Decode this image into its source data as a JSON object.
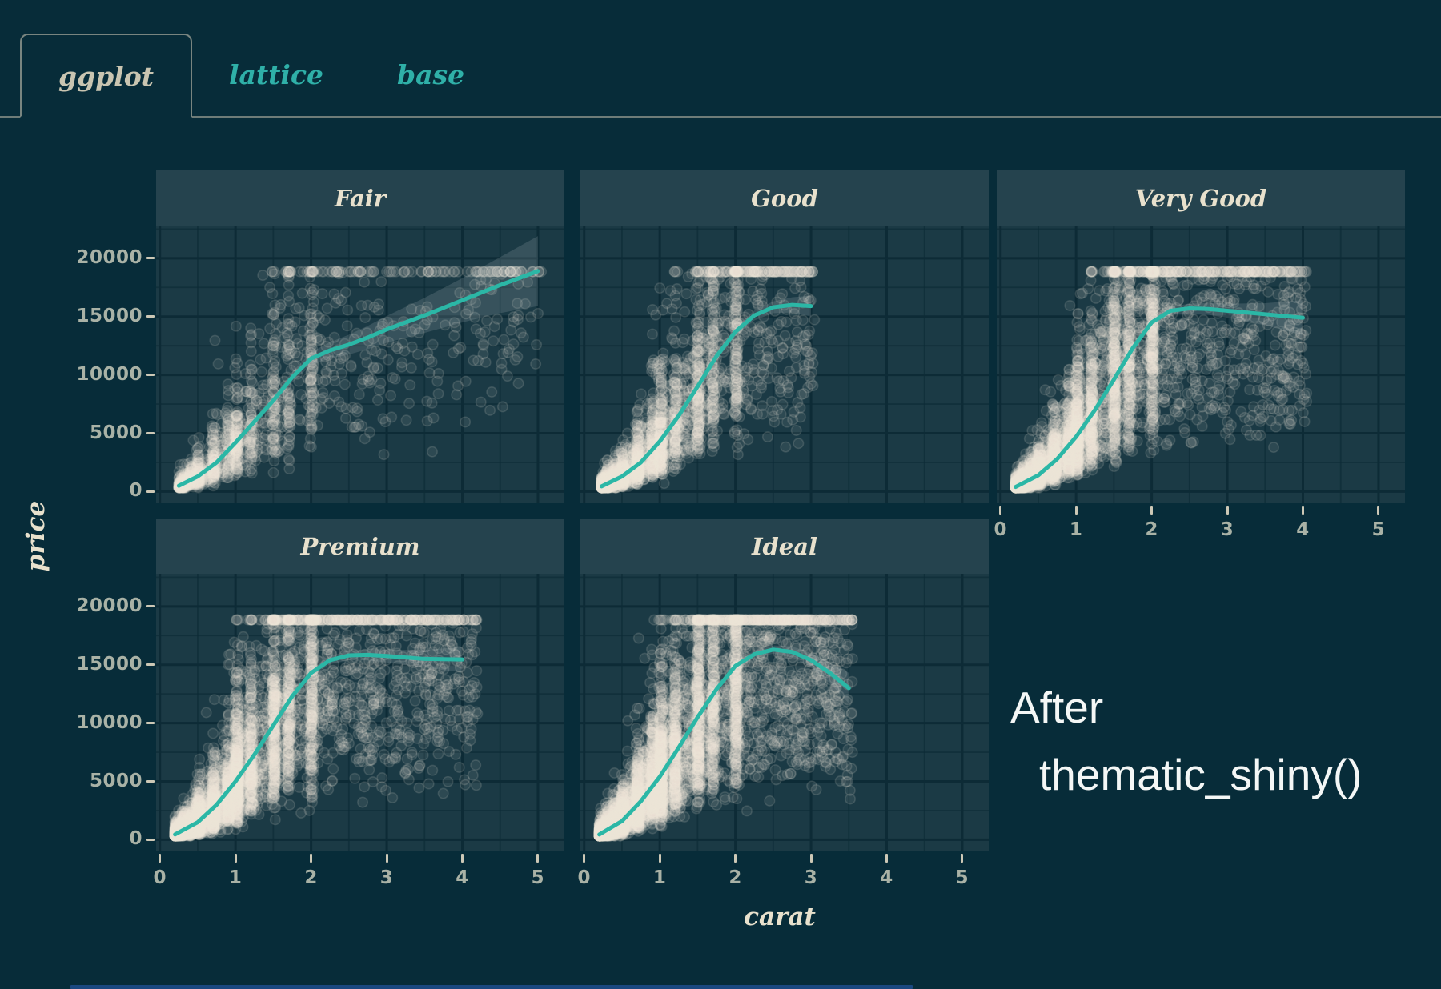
{
  "tabs": [
    {
      "label": "ggplot",
      "active": true
    },
    {
      "label": "lattice",
      "active": false
    },
    {
      "label": "base",
      "active": false
    }
  ],
  "note": {
    "line1": "After",
    "line2": "thematic_shiny()"
  },
  "colors": {
    "background": "#072c39",
    "panel": "#1b3a45",
    "strip": "#25434e",
    "grid": "#0d2b36",
    "smooth_line": "#2bb7a6",
    "ribbon": "rgba(228,237,233,0.14)",
    "point": "#f2ecdc",
    "cream_text": "#e8e1cd",
    "tick_mark": "#cdc8b6",
    "tick_text": "#a9b2a6",
    "tab_active_text": "#c9c5b1",
    "tab_inactive_text": "#2fb0a8",
    "note_text": "#f4f7f6",
    "progress_blue": "#2d63c8"
  },
  "chart_data": {
    "type": "scatter",
    "title": "",
    "xlabel": "carat",
    "ylabel": "price",
    "x_ticks": [
      0,
      1,
      2,
      3,
      4,
      5
    ],
    "y_ticks": [
      0,
      5000,
      10000,
      15000,
      20000
    ],
    "x_range": [
      -0.05,
      5.35
    ],
    "y_range": [
      -1000,
      22800
    ],
    "grid": "major and minor, darker than panel",
    "legend_position": "none",
    "facet_variable": "cut",
    "points_style": "translucent cream circles, heavy overplotting",
    "smooth_style": "teal loess line with grey confidence ribbon",
    "facets": [
      {
        "label": "Fair",
        "row": 0,
        "col": 0,
        "x_axis": false,
        "points_n": 1500,
        "carat_min": 0.25,
        "carat_max": 5.05,
        "pow": 1.9,
        "smooth": [
          [
            0.25,
            500
          ],
          [
            0.5,
            1300
          ],
          [
            0.75,
            2500
          ],
          [
            1,
            4200
          ],
          [
            1.25,
            6000
          ],
          [
            1.5,
            7800
          ],
          [
            1.75,
            9800
          ],
          [
            2,
            11400
          ],
          [
            2.25,
            12100
          ],
          [
            2.5,
            12600
          ],
          [
            2.75,
            13200
          ],
          [
            3,
            13900
          ],
          [
            3.5,
            15100
          ],
          [
            4,
            16400
          ],
          [
            4.5,
            17700
          ],
          [
            5,
            18900
          ]
        ],
        "ci": [
          [
            0.25,
            350
          ],
          [
            1,
            300
          ],
          [
            1.5,
            350
          ],
          [
            2,
            550
          ],
          [
            2.5,
            850
          ],
          [
            3,
            1150
          ],
          [
            3.5,
            1500
          ],
          [
            4,
            1900
          ],
          [
            4.5,
            2400
          ],
          [
            5,
            3000
          ]
        ]
      },
      {
        "label": "Good",
        "row": 0,
        "col": 1,
        "x_axis": false,
        "points_n": 3000,
        "carat_min": 0.23,
        "carat_max": 3.05,
        "pow": 2.3,
        "smooth": [
          [
            0.23,
            450
          ],
          [
            0.5,
            1300
          ],
          [
            0.75,
            2500
          ],
          [
            1,
            4300
          ],
          [
            1.25,
            6500
          ],
          [
            1.5,
            9000
          ],
          [
            1.75,
            11600
          ],
          [
            2,
            13700
          ],
          [
            2.25,
            15100
          ],
          [
            2.5,
            15800
          ],
          [
            2.75,
            16000
          ],
          [
            3,
            15900
          ]
        ],
        "ci": [
          [
            0.23,
            250
          ],
          [
            1,
            250
          ],
          [
            2,
            350
          ],
          [
            2.5,
            500
          ],
          [
            2.75,
            650
          ],
          [
            3,
            900
          ]
        ]
      },
      {
        "label": "Very Good",
        "row": 0,
        "col": 2,
        "x_axis": true,
        "points_n": 5000,
        "carat_min": 0.2,
        "carat_max": 4.05,
        "pow": 2.5,
        "smooth": [
          [
            0.2,
            400
          ],
          [
            0.5,
            1400
          ],
          [
            0.75,
            2800
          ],
          [
            1,
            4700
          ],
          [
            1.25,
            7000
          ],
          [
            1.5,
            9600
          ],
          [
            1.75,
            12300
          ],
          [
            2,
            14500
          ],
          [
            2.25,
            15500
          ],
          [
            2.5,
            15700
          ],
          [
            2.75,
            15650
          ],
          [
            3,
            15500
          ],
          [
            3.5,
            15200
          ],
          [
            4,
            14900
          ]
        ],
        "ci": [
          [
            0.2,
            200
          ],
          [
            1,
            200
          ],
          [
            2,
            300
          ],
          [
            2.5,
            400
          ],
          [
            3,
            600
          ],
          [
            3.5,
            950
          ],
          [
            4,
            1500
          ]
        ]
      },
      {
        "label": "Premium",
        "row": 1,
        "col": 0,
        "x_axis": true,
        "points_n": 5400,
        "carat_min": 0.2,
        "carat_max": 4.2,
        "pow": 2.4,
        "smooth": [
          [
            0.2,
            450
          ],
          [
            0.5,
            1500
          ],
          [
            0.75,
            3000
          ],
          [
            1,
            5000
          ],
          [
            1.25,
            7300
          ],
          [
            1.5,
            9800
          ],
          [
            1.75,
            12300
          ],
          [
            2,
            14300
          ],
          [
            2.25,
            15400
          ],
          [
            2.5,
            15800
          ],
          [
            2.75,
            15850
          ],
          [
            3,
            15750
          ],
          [
            3.5,
            15500
          ],
          [
            4,
            15450
          ]
        ],
        "ci": [
          [
            0.2,
            200
          ],
          [
            1,
            200
          ],
          [
            2,
            300
          ],
          [
            2.5,
            400
          ],
          [
            3,
            550
          ],
          [
            3.5,
            750
          ],
          [
            4,
            1100
          ]
        ]
      },
      {
        "label": "Ideal",
        "row": 1,
        "col": 1,
        "x_axis": true,
        "points_n": 6500,
        "carat_min": 0.2,
        "carat_max": 3.55,
        "pow": 2.4,
        "smooth": [
          [
            0.2,
            450
          ],
          [
            0.5,
            1600
          ],
          [
            0.75,
            3300
          ],
          [
            1,
            5400
          ],
          [
            1.25,
            7900
          ],
          [
            1.5,
            10500
          ],
          [
            1.75,
            12900
          ],
          [
            2,
            14900
          ],
          [
            2.25,
            15900
          ],
          [
            2.5,
            16300
          ],
          [
            2.75,
            16100
          ],
          [
            3,
            15400
          ],
          [
            3.25,
            14300
          ],
          [
            3.5,
            13000
          ]
        ],
        "ci": [
          [
            0.2,
            150
          ],
          [
            1,
            150
          ],
          [
            2,
            250
          ],
          [
            2.5,
            350
          ],
          [
            3,
            600
          ],
          [
            3.25,
            900
          ],
          [
            3.5,
            1300
          ]
        ]
      }
    ]
  }
}
